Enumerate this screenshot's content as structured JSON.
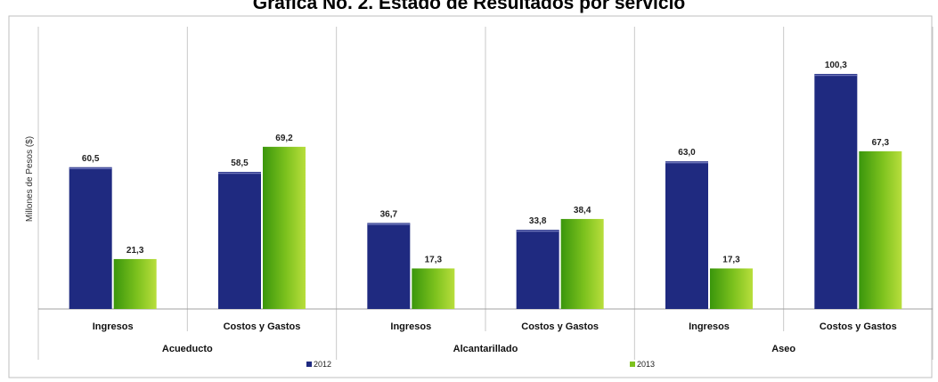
{
  "chart_data": {
    "type": "bar",
    "title": "Gráfica No. 2. Estado de Resultados por servicio",
    "ylabel": "Millones de Pesos ($)",
    "xlabel": "",
    "groups": [
      {
        "name": "Acueducto",
        "categories": [
          "Ingresos",
          "Costos y Gastos"
        ]
      },
      {
        "name": "Alcantarillado",
        "categories": [
          "Ingresos",
          "Costos y Gastos"
        ]
      },
      {
        "name": "Aseo",
        "categories": [
          "Ingresos",
          "Costos y Gastos"
        ]
      }
    ],
    "categories": [
      "Ingresos",
      "Costos y Gastos",
      "Ingresos",
      "Costos y Gastos",
      "Ingresos",
      "Costos y Gastos"
    ],
    "series": [
      {
        "name": "2012",
        "values": [
          60.5,
          58.5,
          36.7,
          33.8,
          63.0,
          100.3
        ],
        "labels": [
          "60,5",
          "58,5",
          "36,7",
          "33,8",
          "63,0",
          "100,3"
        ]
      },
      {
        "name": "2013",
        "values": [
          21.3,
          69.2,
          17.3,
          38.4,
          17.3,
          67.3
        ],
        "labels": [
          "21,3",
          "69,2",
          "17,3",
          "38,4",
          "17,3",
          "67,3"
        ]
      }
    ],
    "ylim": [
      0,
      110
    ],
    "grid": false,
    "legend_position": "bottom",
    "colors": {
      "2012": "#1f2a80",
      "2013": "#7dc21e",
      "2013_dark": "#3e9a0c",
      "2013_light": "#b4dc3a"
    }
  }
}
